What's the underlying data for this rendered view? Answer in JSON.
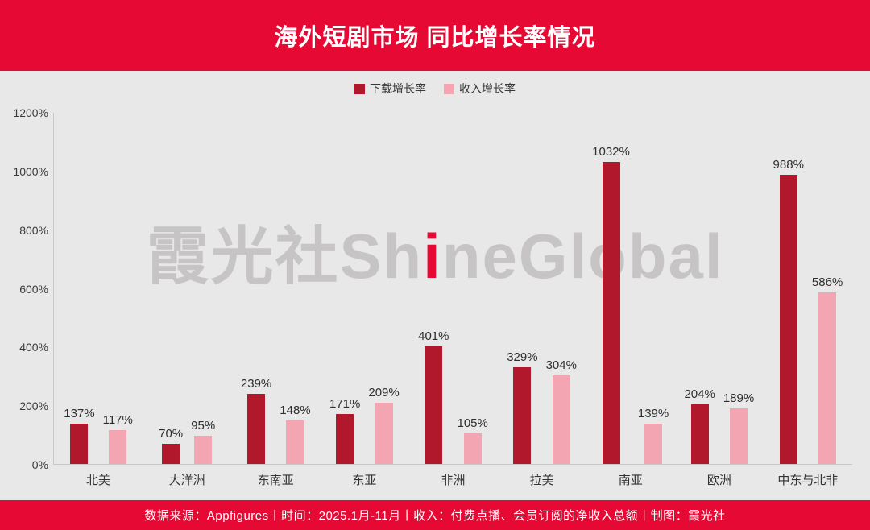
{
  "header": {
    "title": "海外短剧市场 同比增长率情况"
  },
  "legend": [
    {
      "label": "下载增长率",
      "color": "#b2182b"
    },
    {
      "label": "收入增长率",
      "color": "#f3a6b2"
    }
  ],
  "chart_data": {
    "type": "bar",
    "title": "海外短剧市场 同比增长率情况",
    "categories": [
      "北美",
      "大洋洲",
      "东南亚",
      "东亚",
      "非洲",
      "拉美",
      "南亚",
      "欧洲",
      "中东与北非"
    ],
    "series": [
      {
        "name": "下载增长率",
        "color": "#b2182b",
        "values": [
          137,
          70,
          239,
          171,
          401,
          329,
          1032,
          204,
          988
        ]
      },
      {
        "name": "收入增长率",
        "color": "#f3a6b2",
        "values": [
          117,
          95,
          148,
          209,
          105,
          304,
          139,
          189,
          586
        ]
      }
    ],
    "xlabel": "",
    "ylabel": "",
    "ylim": [
      0,
      1200
    ],
    "ytick_step": 200,
    "ytick_suffix": "%",
    "value_suffix": "%",
    "grid": false,
    "legend_position": "top"
  },
  "watermark": {
    "prefix": "霞光社Sh",
    "red_letter": "i",
    "suffix": "neGlobal"
  },
  "footer": {
    "text": "数据来源：Appfigures丨时间：2025.1月-11月丨收入：付费点播、会员订阅的净收入总额丨制图：霞光社"
  }
}
